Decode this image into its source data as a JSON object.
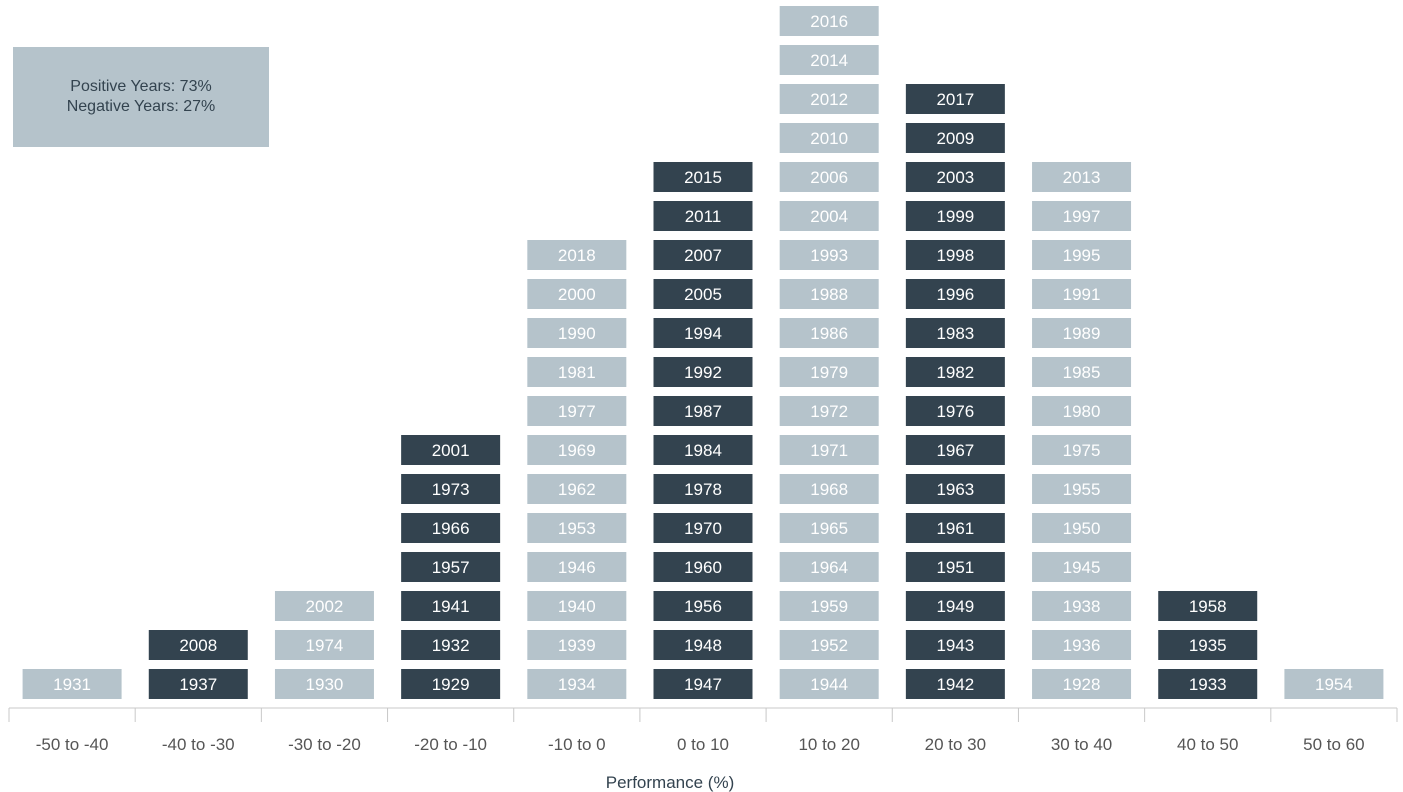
{
  "chart_data": {
    "type": "table",
    "xlabel": "Performance (%)",
    "summary": {
      "positive": "Positive Years: 73%",
      "negative": "Negative Years: 27%"
    },
    "colors": {
      "light": "#b5c3cb",
      "dark": "#33434f",
      "summary_box": "#b5c3cb",
      "axis": "#c8c8c8",
      "text": "#555555"
    },
    "buckets": [
      {
        "label": "-50 to -40",
        "shade": "light",
        "years": [
          "1931"
        ]
      },
      {
        "label": "-40 to -30",
        "shade": "dark",
        "years": [
          "1937",
          "2008"
        ]
      },
      {
        "label": "-30 to -20",
        "shade": "light",
        "years": [
          "1930",
          "1974",
          "2002"
        ]
      },
      {
        "label": "-20 to -10",
        "shade": "dark",
        "years": [
          "1929",
          "1932",
          "1941",
          "1957",
          "1966",
          "1973",
          "2001"
        ]
      },
      {
        "label": "-10 to 0",
        "shade": "light",
        "years": [
          "1934",
          "1939",
          "1940",
          "1946",
          "1953",
          "1962",
          "1969",
          "1977",
          "1981",
          "1990",
          "2000",
          "2018"
        ]
      },
      {
        "label": "0 to 10",
        "shade": "dark",
        "years": [
          "1947",
          "1948",
          "1956",
          "1960",
          "1970",
          "1978",
          "1984",
          "1987",
          "1992",
          "1994",
          "2005",
          "2007",
          "2011",
          "2015"
        ]
      },
      {
        "label": "10 to 20",
        "shade": "light",
        "years": [
          "1944",
          "1952",
          "1959",
          "1964",
          "1965",
          "1968",
          "1971",
          "1972",
          "1979",
          "1986",
          "1988",
          "1993",
          "2004",
          "2006",
          "2010",
          "2012",
          "2014",
          "2016"
        ]
      },
      {
        "label": "20 to 30",
        "shade": "dark",
        "years": [
          "1942",
          "1943",
          "1949",
          "1951",
          "1961",
          "1963",
          "1967",
          "1976",
          "1982",
          "1983",
          "1996",
          "1998",
          "1999",
          "2003",
          "2009",
          "2017"
        ]
      },
      {
        "label": "30 to 40",
        "shade": "light",
        "years": [
          "1928",
          "1936",
          "1938",
          "1945",
          "1950",
          "1955",
          "1975",
          "1980",
          "1985",
          "1989",
          "1991",
          "1995",
          "1997",
          "2013"
        ]
      },
      {
        "label": "40 to 50",
        "shade": "dark",
        "years": [
          "1933",
          "1935",
          "1958"
        ]
      },
      {
        "label": "50 to 60",
        "shade": "light",
        "years": [
          "1954"
        ]
      }
    ]
  }
}
